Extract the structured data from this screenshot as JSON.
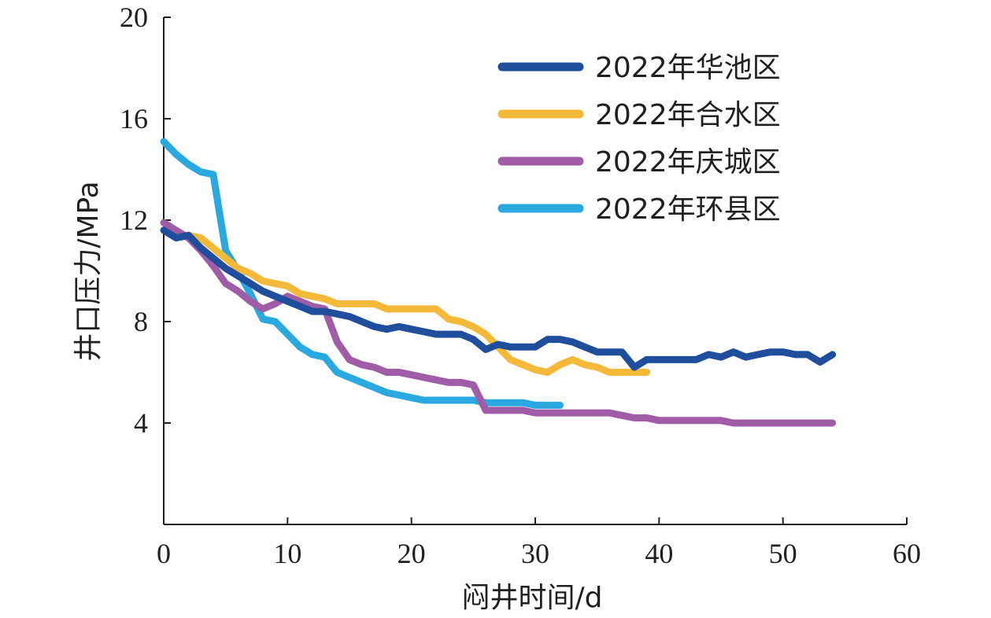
{
  "chart_data": {
    "type": "line",
    "title": "",
    "xlabel": "闷井时间/d",
    "ylabel": "井口压力/MPa",
    "xlim": [
      0,
      60
    ],
    "ylim": [
      0,
      20
    ],
    "x_ticks": [
      "0",
      "10",
      "20",
      "30",
      "40",
      "50",
      "60"
    ],
    "y_ticks": [
      "4",
      "8",
      "12",
      "16",
      "20"
    ],
    "x_tick_values": [
      0,
      10,
      20,
      30,
      40,
      50,
      60
    ],
    "y_tick_values": [
      4,
      8,
      12,
      16,
      20
    ],
    "grid": false,
    "legend_position": "top-right",
    "series": [
      {
        "name": "2022年华池区",
        "color": "#1f4e9d",
        "x": [
          0,
          1,
          2,
          3,
          4,
          5,
          6,
          7,
          8,
          9,
          10,
          11,
          12,
          13,
          14,
          15,
          16,
          17,
          18,
          19,
          20,
          21,
          22,
          23,
          24,
          25,
          26,
          27,
          28,
          29,
          30,
          31,
          32,
          33,
          34,
          35,
          36,
          37,
          38,
          39,
          40,
          41,
          42,
          43,
          44,
          45,
          46,
          47,
          48,
          49,
          50,
          51,
          52,
          53,
          54
        ],
        "y": [
          11.6,
          11.3,
          11.4,
          10.9,
          10.5,
          10.1,
          9.8,
          9.5,
          9.2,
          9.0,
          8.8,
          8.6,
          8.4,
          8.4,
          8.3,
          8.2,
          8.0,
          7.8,
          7.7,
          7.8,
          7.7,
          7.6,
          7.5,
          7.5,
          7.5,
          7.3,
          6.9,
          7.1,
          7.0,
          7.0,
          7.0,
          7.3,
          7.3,
          7.2,
          7.0,
          6.8,
          6.8,
          6.8,
          6.2,
          6.5,
          6.5,
          6.5,
          6.5,
          6.5,
          6.7,
          6.6,
          6.8,
          6.6,
          6.7,
          6.8,
          6.8,
          6.7,
          6.7,
          6.4,
          6.7
        ]
      },
      {
        "name": "2022年合水区",
        "color": "#f5b93a",
        "x": [
          2,
          3,
          4,
          5,
          6,
          7,
          8,
          9,
          10,
          11,
          12,
          13,
          14,
          15,
          16,
          17,
          18,
          19,
          20,
          21,
          22,
          23,
          24,
          25,
          26,
          27,
          28,
          29,
          30,
          31,
          32,
          33,
          34,
          35,
          36,
          37,
          38,
          39
        ],
        "y": [
          11.4,
          11.3,
          10.9,
          10.5,
          10.1,
          9.9,
          9.6,
          9.5,
          9.4,
          9.1,
          9.0,
          8.9,
          8.7,
          8.7,
          8.7,
          8.7,
          8.5,
          8.5,
          8.5,
          8.5,
          8.5,
          8.1,
          8.0,
          7.8,
          7.5,
          7.0,
          6.5,
          6.3,
          6.1,
          6.0,
          6.3,
          6.5,
          6.3,
          6.2,
          6.0,
          6.0,
          6.0,
          6.0
        ]
      },
      {
        "name": "2022年庆城区",
        "color": "#a15ca8",
        "x": [
          0,
          1,
          2,
          3,
          4,
          5,
          6,
          7,
          8,
          9,
          10,
          11,
          12,
          13,
          14,
          15,
          16,
          17,
          18,
          19,
          20,
          21,
          22,
          23,
          24,
          25,
          26,
          27,
          28,
          29,
          30,
          31,
          32,
          33,
          34,
          35,
          36,
          37,
          38,
          39,
          40,
          41,
          42,
          43,
          44,
          45,
          46,
          47,
          48,
          49,
          50,
          51,
          52,
          53,
          54
        ],
        "y": [
          11.9,
          11.6,
          11.3,
          10.8,
          10.2,
          9.5,
          9.2,
          8.8,
          8.5,
          8.7,
          9.0,
          8.8,
          8.6,
          8.5,
          7.2,
          6.5,
          6.3,
          6.2,
          6.0,
          6.0,
          5.9,
          5.8,
          5.7,
          5.6,
          5.6,
          5.5,
          4.5,
          4.5,
          4.5,
          4.5,
          4.4,
          4.4,
          4.4,
          4.4,
          4.4,
          4.4,
          4.4,
          4.3,
          4.2,
          4.2,
          4.1,
          4.1,
          4.1,
          4.1,
          4.1,
          4.1,
          4.0,
          4.0,
          4.0,
          4.0,
          4.0,
          4.0,
          4.0,
          4.0,
          4.0
        ]
      },
      {
        "name": "2022年环县区",
        "color": "#2aa9e0",
        "x": [
          0,
          1,
          2,
          3,
          4,
          5,
          6,
          7,
          8,
          9,
          10,
          11,
          12,
          13,
          14,
          15,
          16,
          17,
          18,
          19,
          20,
          21,
          22,
          23,
          24,
          25,
          26,
          27,
          28,
          29,
          30,
          31,
          32
        ],
        "y": [
          15.1,
          14.6,
          14.2,
          13.9,
          13.8,
          10.8,
          10.0,
          9.1,
          8.1,
          8.0,
          7.5,
          7.0,
          6.7,
          6.6,
          6.0,
          5.8,
          5.6,
          5.4,
          5.2,
          5.1,
          5.0,
          4.9,
          4.9,
          4.9,
          4.9,
          4.9,
          4.8,
          4.8,
          4.8,
          4.8,
          4.7,
          4.7,
          4.7
        ]
      }
    ]
  }
}
